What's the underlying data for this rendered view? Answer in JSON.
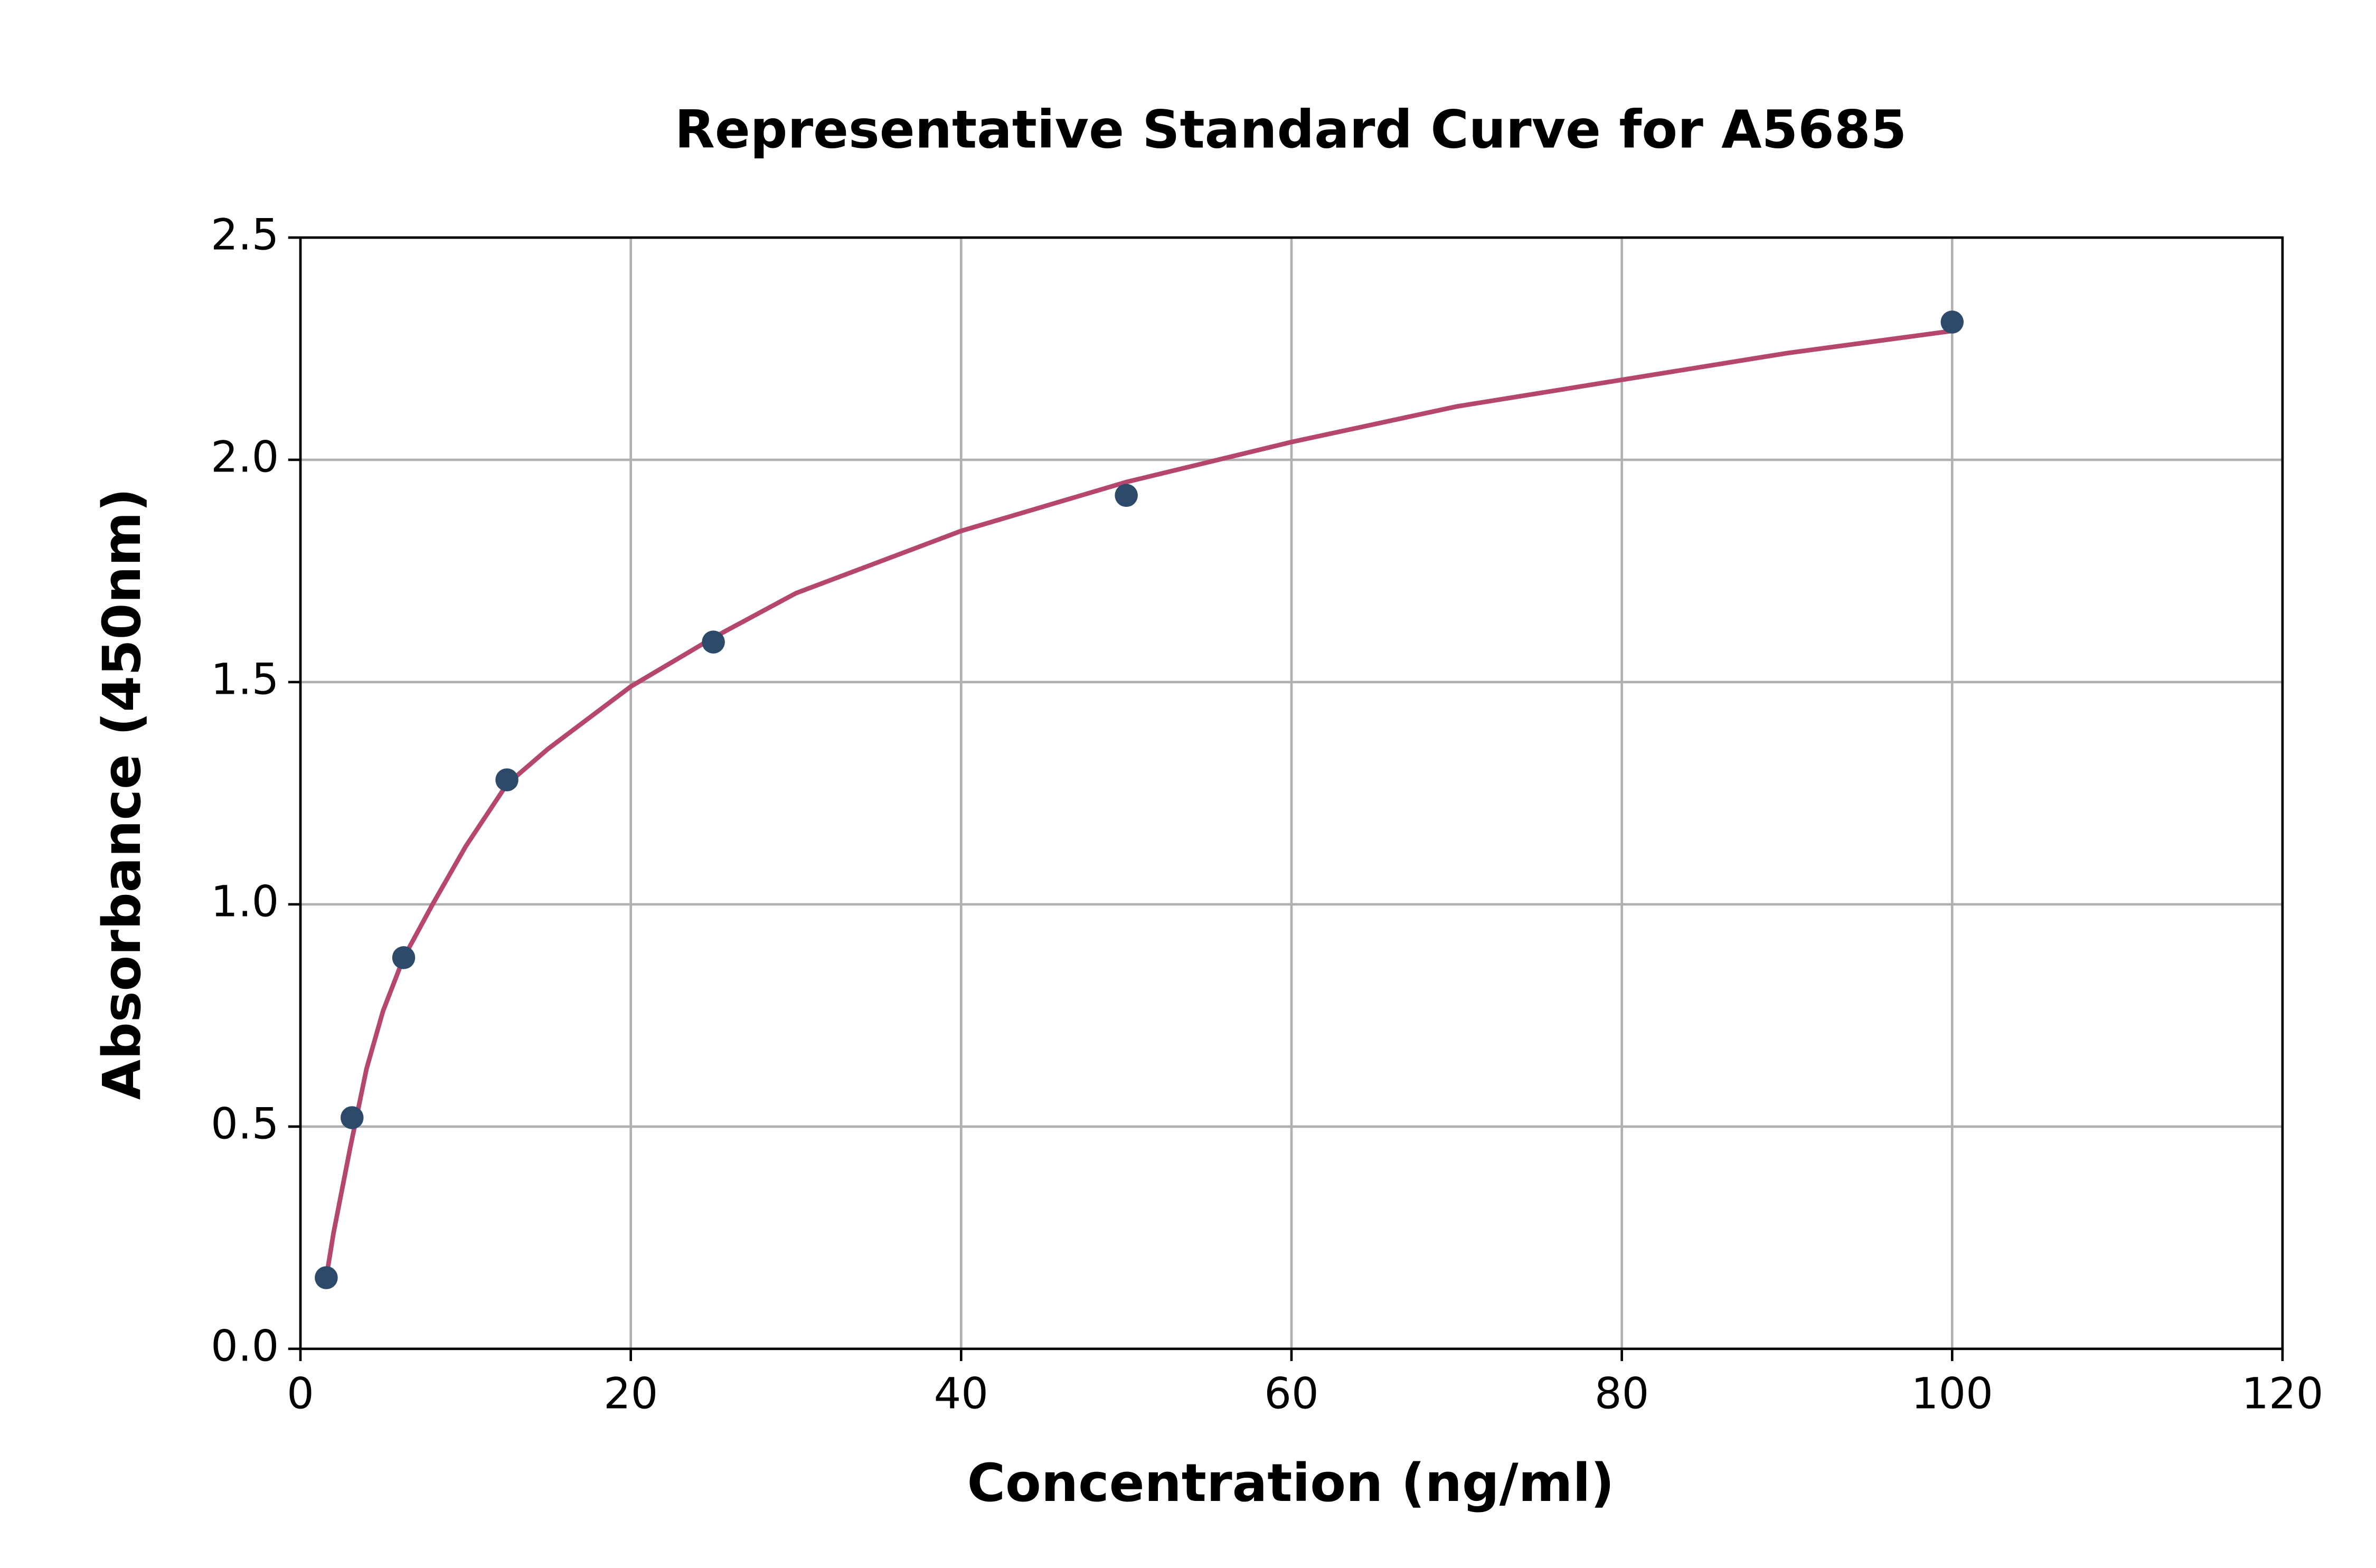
{
  "chart_data": {
    "type": "scatter",
    "title": "Representative Standard Curve for A5685",
    "xlabel": "Concentration (ng/ml)",
    "ylabel": "Absorbance (450nm)",
    "series": [
      {
        "kind": "points",
        "color": "#2e4a6b",
        "x": [
          1.5625,
          3.125,
          6.25,
          12.5,
          25,
          50,
          100
        ],
        "values": [
          0.16,
          0.52,
          0.88,
          1.28,
          1.59,
          1.92,
          2.31
        ]
      },
      {
        "kind": "line",
        "color": "#b5466e",
        "x": [
          1.5625,
          2,
          3,
          4,
          5,
          6.25,
          8,
          10,
          12.5,
          15,
          20,
          25,
          30,
          40,
          50,
          60,
          70,
          80,
          90,
          100
        ],
        "values": [
          0.16,
          0.26,
          0.45,
          0.63,
          0.76,
          0.88,
          1.0,
          1.13,
          1.27,
          1.35,
          1.49,
          1.6,
          1.7,
          1.84,
          1.95,
          2.04,
          2.12,
          2.18,
          2.24,
          2.29
        ]
      }
    ],
    "xlim": [
      0,
      120
    ],
    "xticks": [
      0,
      20,
      40,
      60,
      80,
      100,
      120
    ],
    "ylim": [
      0,
      2.5
    ],
    "yticks": [
      {
        "value": 0,
        "label": "0.0"
      },
      0.5,
      {
        "value": 1,
        "label": "1.0"
      },
      1.5,
      {
        "value": 2,
        "label": "2.0"
      },
      2.5
    ],
    "grid": true
  }
}
